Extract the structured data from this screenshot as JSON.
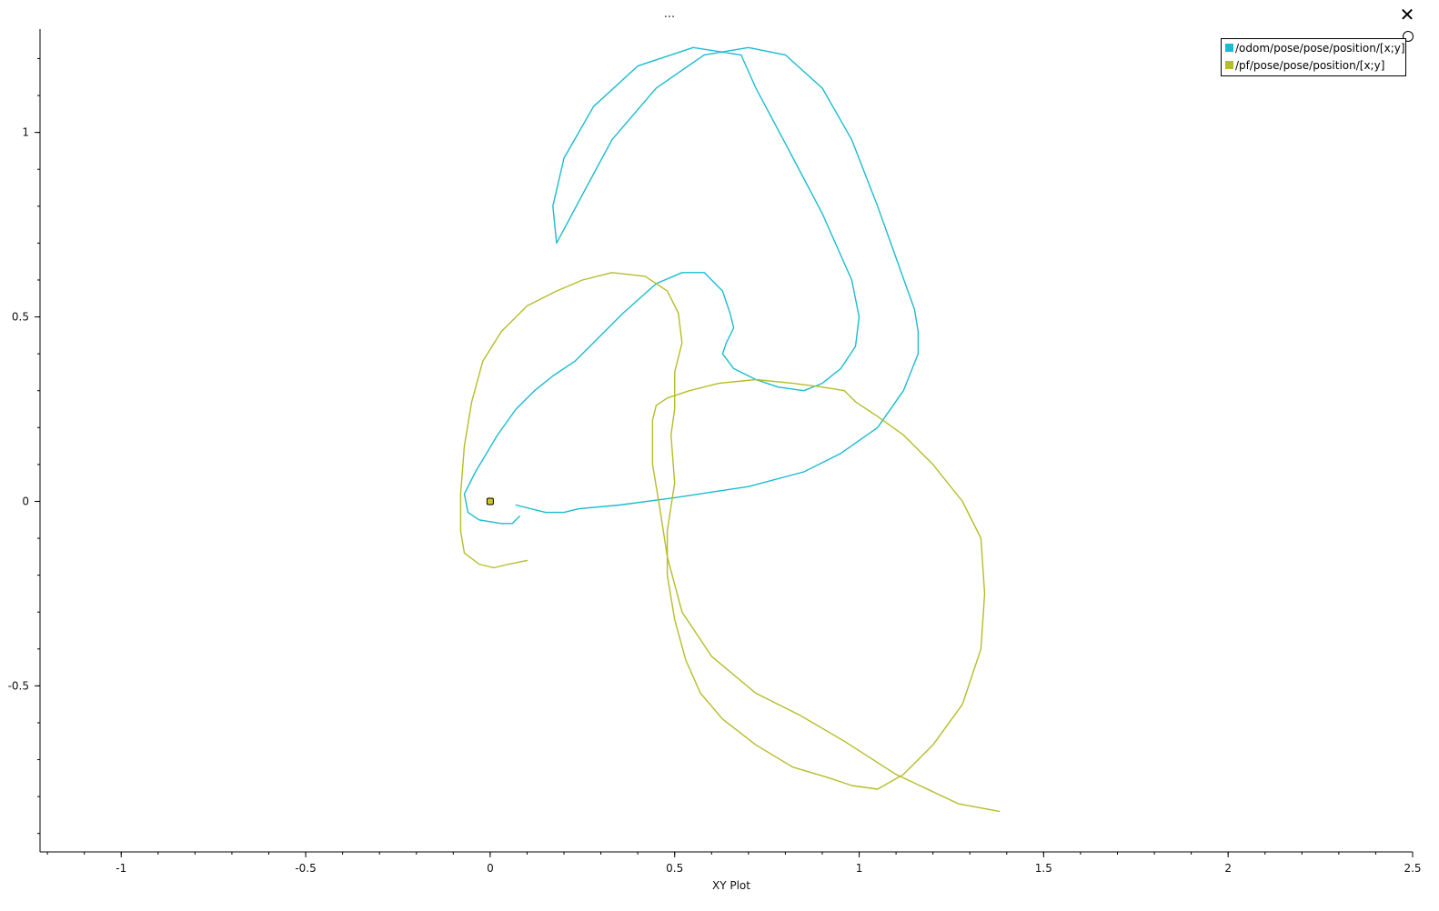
{
  "window": {
    "title": "...",
    "close_label": "✕"
  },
  "legend": {
    "items": [
      {
        "label": "/odom/pose/pose/position/[x;y]",
        "color": "#1bbccf"
      },
      {
        "label": "/pf/pose/pose/position/[x;y]",
        "color": "#b5bd27"
      }
    ]
  },
  "chart_data": {
    "type": "scatter",
    "xlabel": "XY Plot",
    "ylabel": "",
    "xlim": [
      -1.22,
      2.5
    ],
    "ylim": [
      -0.95,
      1.28
    ],
    "grid": false,
    "legend_position": "top-right",
    "x_ticks": [
      -1,
      -0.5,
      0,
      0.5,
      1,
      1.5,
      2,
      2.5
    ],
    "x_tick_labels": [
      "-1",
      "-0.5",
      "0",
      "0.5",
      "1",
      "1.5",
      "2",
      "2.5"
    ],
    "y_ticks": [
      1,
      0.5,
      0,
      -0.5
    ],
    "y_tick_labels": [
      "1",
      "0.5",
      "0",
      "-0.5"
    ],
    "marker": {
      "x": 0,
      "y": 0,
      "color": "#d4c22a"
    },
    "series": [
      {
        "name": "/odom/pose/pose/position/[x;y]",
        "color": "#1bbccf",
        "x": [
          0.07,
          0.15,
          0.2,
          0.24,
          0.35,
          0.5,
          0.7,
          0.85,
          0.95,
          1.05,
          1.12,
          1.16,
          1.16,
          1.15,
          1.05,
          0.98,
          0.9,
          0.8,
          0.7,
          0.58,
          0.45,
          0.33,
          0.26,
          0.18,
          0.17,
          0.2,
          0.28,
          0.4,
          0.55,
          0.68,
          0.72,
          0.8,
          0.9,
          0.98,
          1.0,
          0.99,
          0.95,
          0.9,
          0.85,
          0.78,
          0.72,
          0.66,
          0.63,
          0.64,
          0.66,
          0.65,
          0.63,
          0.58,
          0.52,
          0.45,
          0.36,
          0.28,
          0.23,
          0.17,
          0.12,
          0.07,
          0.02,
          -0.04,
          -0.07,
          -0.06,
          -0.03,
          0.03,
          0.06,
          0.08
        ],
        "y": [
          -0.01,
          -0.03,
          -0.03,
          -0.02,
          -0.01,
          0.01,
          0.04,
          0.08,
          0.13,
          0.2,
          0.3,
          0.4,
          0.46,
          0.52,
          0.8,
          0.98,
          1.12,
          1.21,
          1.23,
          1.21,
          1.12,
          0.98,
          0.85,
          0.7,
          0.8,
          0.93,
          1.07,
          1.18,
          1.23,
          1.21,
          1.12,
          0.97,
          0.78,
          0.6,
          0.5,
          0.42,
          0.36,
          0.32,
          0.3,
          0.31,
          0.33,
          0.36,
          0.4,
          0.43,
          0.47,
          0.51,
          0.57,
          0.62,
          0.62,
          0.59,
          0.51,
          0.43,
          0.38,
          0.34,
          0.3,
          0.25,
          0.18,
          0.08,
          0.02,
          -0.03,
          -0.05,
          -0.06,
          -0.06,
          -0.04
        ]
      },
      {
        "name": "/pf/pose/pose/position/[x;y]",
        "color": "#b5bd27",
        "x": [
          0.1,
          0.05,
          0.01,
          -0.03,
          -0.07,
          -0.08,
          -0.08,
          -0.07,
          -0.05,
          -0.02,
          0.03,
          0.1,
          0.18,
          0.25,
          0.33,
          0.42,
          0.48,
          0.51,
          0.52,
          0.5,
          0.5,
          0.49,
          0.5,
          0.48,
          0.48,
          0.5,
          0.53,
          0.57,
          0.63,
          0.72,
          0.82,
          0.92,
          0.98,
          1.05,
          1.12,
          1.2,
          1.28,
          1.33,
          1.34,
          1.33,
          1.28,
          1.2,
          1.12,
          1.05,
          0.99,
          0.96,
          0.9,
          0.82,
          0.72,
          0.62,
          0.54,
          0.48,
          0.45,
          0.44,
          0.44,
          0.46,
          0.48,
          0.52,
          0.6,
          0.72,
          0.84,
          0.96,
          1.1,
          1.27,
          1.38
        ],
        "y": [
          -0.16,
          -0.17,
          -0.18,
          -0.17,
          -0.14,
          -0.08,
          0.02,
          0.15,
          0.27,
          0.38,
          0.46,
          0.53,
          0.57,
          0.6,
          0.62,
          0.61,
          0.57,
          0.51,
          0.43,
          0.35,
          0.25,
          0.18,
          0.05,
          -0.08,
          -0.2,
          -0.32,
          -0.43,
          -0.52,
          -0.59,
          -0.66,
          -0.72,
          -0.75,
          -0.77,
          -0.78,
          -0.74,
          -0.66,
          -0.55,
          -0.4,
          -0.25,
          -0.1,
          0.0,
          0.1,
          0.18,
          0.23,
          0.27,
          0.3,
          0.31,
          0.32,
          0.33,
          0.32,
          0.3,
          0.28,
          0.26,
          0.22,
          0.1,
          -0.02,
          -0.15,
          -0.3,
          -0.42,
          -0.52,
          -0.58,
          -0.65,
          -0.74,
          -0.82,
          -0.84
        ]
      }
    ]
  }
}
